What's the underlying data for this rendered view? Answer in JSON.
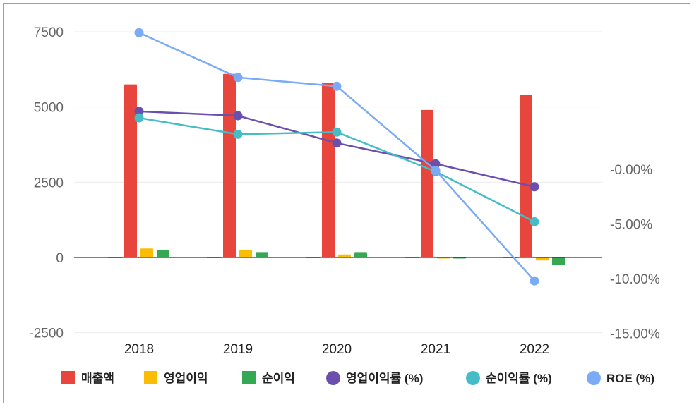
{
  "chart_data": {
    "type": "bar",
    "categories": [
      "2018",
      "2019",
      "2020",
      "2021",
      "2022"
    ],
    "left_axis": {
      "ticks": [
        "7500",
        "5000",
        "2500",
        "0",
        "-2500"
      ],
      "ylim": [
        -2500,
        7500
      ]
    },
    "right_axis": {
      "ticks": [
        "-0.00%",
        "-5.00%",
        "-10.00%",
        "-15.00%"
      ]
    },
    "grid": true,
    "legend_position": "bottom",
    "bar_series": [
      {
        "name": "매출액",
        "color": "#e8453c",
        "values": [
          5750,
          6100,
          5800,
          4900,
          5400
        ]
      },
      {
        "name": "영업이익",
        "color": "#fbbc04",
        "values": [
          300,
          250,
          100,
          0,
          -100
        ]
      },
      {
        "name": "순이익",
        "color": "#34a853",
        "values": [
          250,
          180,
          180,
          0,
          -250
        ]
      }
    ],
    "line_series": [
      {
        "name": "영업이익률 (%)",
        "color": "#6a4fae",
        "values": [
          5.3,
          4.9,
          2.4,
          0.5,
          -1.6
        ]
      },
      {
        "name": "순이익률 (%)",
        "color": "#46bdc6",
        "values": [
          4.7,
          3.2,
          3.4,
          -0.2,
          -4.8
        ]
      },
      {
        "name": "ROE (%)",
        "color": "#7baaf7",
        "values": [
          12.5,
          8.4,
          7.6,
          -0.1,
          -10.2
        ]
      }
    ]
  }
}
